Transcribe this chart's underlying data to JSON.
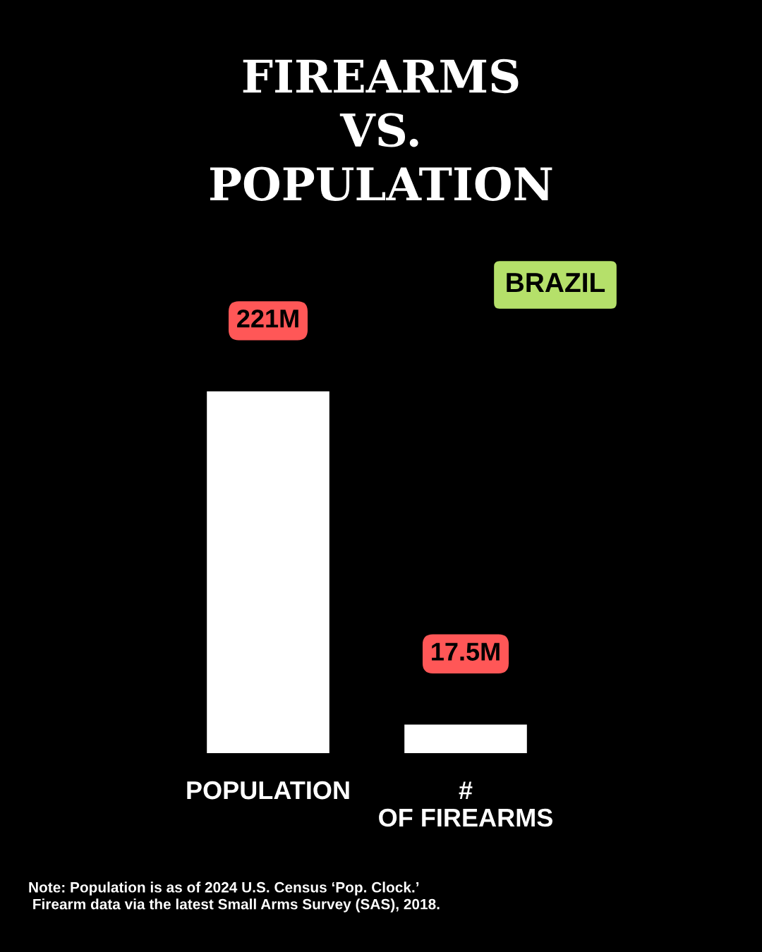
{
  "chart_data": {
    "type": "bar",
    "title": "FIREARMS\nVS.\nPOPULATION",
    "subtitle": "BRAZIL",
    "categories": [
      "POPULATION",
      "#\nOF FIREARMS"
    ],
    "values": [
      221,
      17.5
    ],
    "value_labels": [
      "221M",
      "17.5M"
    ],
    "color": "#ffffff",
    "annotations": [
      "Note: Population is as of 2024 U.S. Census ‘Pop. Clock.’\n Firearm data via the latest Small Arms Survey (SAS), 2018."
    ],
    "grid": false,
    "legend": false
  }
}
